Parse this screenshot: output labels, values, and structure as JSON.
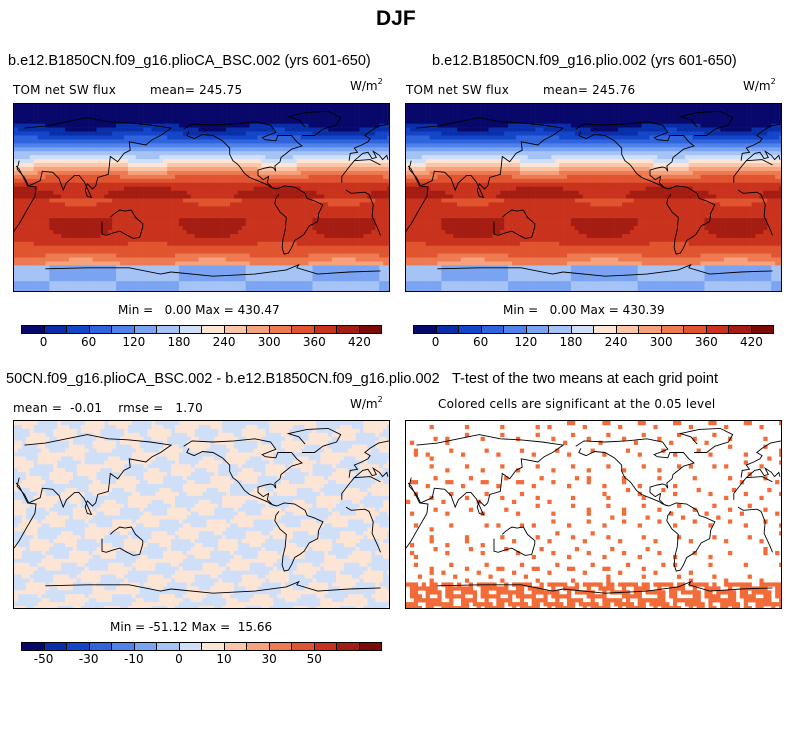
{
  "figure_title": "DJF",
  "colors": {
    "pos_scale": [
      "#08086b",
      "#0a2ea8",
      "#1346c8",
      "#2f64dc",
      "#4f82ea",
      "#7aa4f2",
      "#a6c3f6",
      "#cfdff8",
      "#fde5d6",
      "#fbc6a8",
      "#f6a27c",
      "#ee7a52",
      "#e15430",
      "#c9321c",
      "#a51c12",
      "#7c0a06"
    ],
    "diff_scale": [
      "#08086b",
      "#0a2ea8",
      "#1346c8",
      "#2f64dc",
      "#4f82ea",
      "#7aa4f2",
      "#a6c3f6",
      "#cfdff8",
      "#fde5d6",
      "#fbc6a8",
      "#f6a27c",
      "#ee7a52",
      "#e15430",
      "#c9321c",
      "#a51c12",
      "#7c0a06"
    ],
    "significant": "#f26b38"
  },
  "chart_data": [
    {
      "type": "heatmap",
      "title": "b.e12.B1850CN.f09_g16.plioCA_BSC.002 (yrs 601-650)",
      "subtitle": "TOM net SW flux",
      "mean_text": "mean= 245.75",
      "units": "W/m",
      "units_sup": "2",
      "minmax_text": "Min =   0.00 Max = 430.47",
      "colorbar_ticks": [
        "0",
        "60",
        "120",
        "180",
        "240",
        "300",
        "360",
        "420"
      ],
      "min": 0.0,
      "max": 430.47,
      "mean": 245.75
    },
    {
      "type": "heatmap",
      "title": "b.e12.B1850CN.f09_g16.plio.002 (yrs 601-650)",
      "subtitle": "TOM net SW flux",
      "mean_text": "mean= 245.76",
      "units": "W/m",
      "units_sup": "2",
      "minmax_text": "Min =   0.00 Max = 430.39",
      "colorbar_ticks": [
        "0",
        "60",
        "120",
        "180",
        "240",
        "300",
        "360",
        "420"
      ],
      "min": 0.0,
      "max": 430.39,
      "mean": 245.76
    },
    {
      "type": "heatmap",
      "title": "50CN.f09_g16.plioCA_BSC.002 - b.e12.B1850CN.f09_g16.plio.002",
      "subtitle": "mean =  -0.01    rmse =   1.70",
      "units": "W/m",
      "units_sup": "2",
      "minmax_text": "Min = -51.12 Max =  15.66",
      "colorbar_ticks": [
        "-50",
        "-30",
        "-10",
        "0",
        "10",
        "30",
        "50"
      ],
      "min": -51.12,
      "max": 15.66,
      "mean": -0.01,
      "rmse": 1.7
    },
    {
      "type": "heatmap",
      "title": "T-test of the two means at each grid point",
      "subtitle": "Colored cells are significant at the 0.05 level"
    }
  ]
}
